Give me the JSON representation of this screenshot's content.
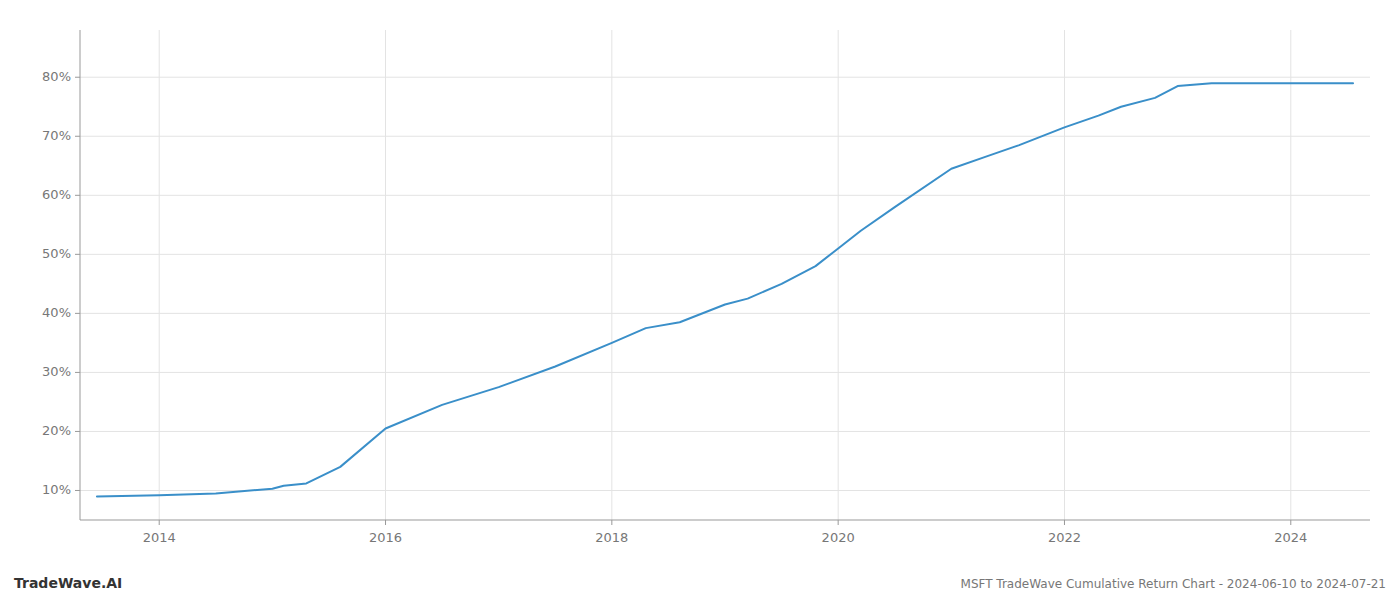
{
  "chart_data": {
    "type": "line",
    "title": "MSFT TradeWave Cumulative Return Chart - 2024-06-10 to 2024-07-21",
    "annotations": [
      "TradeWave.AI"
    ],
    "x": [
      2013.45,
      2014.0,
      2014.5,
      2015.0,
      2015.1,
      2015.3,
      2015.6,
      2016.0,
      2016.5,
      2017.0,
      2017.5,
      2018.0,
      2018.3,
      2018.6,
      2019.0,
      2019.2,
      2019.5,
      2019.8,
      2020.0,
      2020.2,
      2020.5,
      2021.0,
      2021.3,
      2021.6,
      2022.0,
      2022.3,
      2022.5,
      2022.8,
      2023.0,
      2023.3,
      2023.5,
      2023.8,
      2024.0,
      2024.3,
      2024.55
    ],
    "values": [
      9.0,
      9.2,
      9.5,
      10.3,
      10.8,
      11.2,
      14.0,
      20.5,
      24.5,
      27.5,
      31.0,
      35.0,
      37.5,
      38.5,
      41.5,
      42.5,
      45.0,
      48.0,
      51.0,
      54.0,
      58.0,
      64.5,
      66.5,
      68.5,
      71.5,
      73.5,
      75.0,
      76.5,
      78.5,
      79.0,
      79.0,
      79.0,
      79.0,
      79.0,
      79.0
    ],
    "color": "#3a8fc9",
    "xlim": [
      2013.3,
      2024.7
    ],
    "ylim": [
      5,
      88
    ],
    "xticks": [
      2014,
      2016,
      2018,
      2020,
      2022,
      2024
    ],
    "yticks": [
      {
        "value": 10,
        "label": "10%"
      },
      {
        "value": 20,
        "label": "20%"
      },
      {
        "value": 30,
        "label": "30%"
      },
      {
        "value": 40,
        "label": "40%"
      },
      {
        "value": 50,
        "label": "50%"
      },
      {
        "value": 60,
        "label": "60%"
      },
      {
        "value": 70,
        "label": "70%"
      },
      {
        "value": 80,
        "label": "80%"
      }
    ],
    "grid": true
  }
}
